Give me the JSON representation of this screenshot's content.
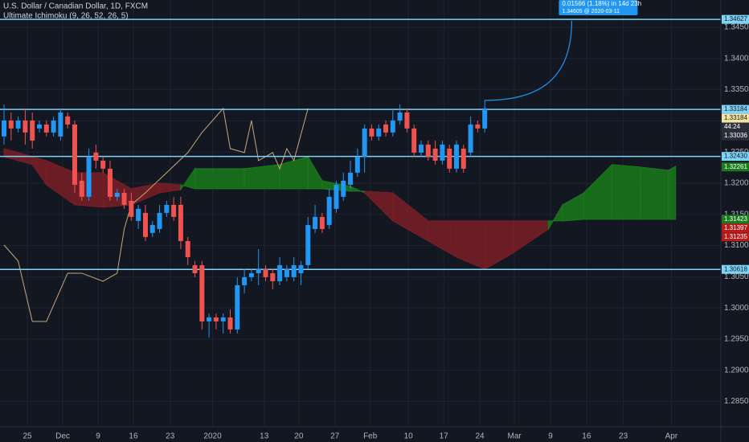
{
  "chart_data": {
    "type": "candlestick",
    "title": "U.S. Dollar / Canadian Dollar, 1D, FXCM",
    "indicator": "Ultimate Ichimoku (9, 26, 52, 26, 5)",
    "up_color": "#2196f3",
    "down_color": "#ef5350",
    "x": [
      0,
      1,
      2,
      3,
      4,
      5,
      6,
      7,
      8,
      9,
      10,
      11,
      12,
      13,
      14,
      15,
      16,
      17,
      18,
      19,
      20,
      21,
      22,
      23,
      24,
      25,
      26,
      27,
      28,
      29,
      30,
      31,
      32,
      33,
      34,
      35,
      36,
      37,
      38,
      39,
      40,
      41,
      42,
      43,
      44,
      45,
      46,
      47,
      48,
      49,
      50,
      51,
      52,
      53,
      54,
      55,
      56,
      57,
      58,
      59,
      60,
      61,
      62,
      63,
      64,
      65,
      66,
      67,
      68
    ],
    "open": [
      1.32749,
      1.33006,
      1.32878,
      1.33006,
      1.33006,
      1.32878,
      1.32942,
      1.32813,
      1.32749,
      1.33071,
      1.32942,
      1.3204,
      1.31782,
      1.32491,
      1.32362,
      1.32233,
      1.31782,
      1.31846,
      1.31718,
      1.31395,
      1.31524,
      1.31202,
      1.31266,
      1.31524,
      1.31653,
      1.31653,
      1.31073,
      1.30686,
      1.30686,
      1.29784,
      1.29848,
      1.29784,
      1.29848,
      1.29655,
      1.30364,
      1.30493,
      1.30557,
      1.30622,
      1.30557,
      1.30428,
      1.30493,
      1.30493,
      1.30557,
      1.30686,
      1.31266,
      1.3146,
      1.31331,
      1.31589,
      1.31782,
      1.31975,
      1.32169,
      1.32426,
      1.32878,
      1.32749,
      1.32942,
      1.32813,
      1.33006,
      1.33135,
      1.32878,
      1.32491,
      1.3262,
      1.32555,
      1.32362,
      1.32555,
      1.32233,
      1.32555,
      1.32491,
      1.32942,
      1.32878
    ],
    "high": [
      1.33264,
      1.33135,
      1.33071,
      1.332,
      1.33135,
      1.33006,
      1.33006,
      1.33071,
      1.332,
      1.33135,
      1.33006,
      1.32169,
      1.32555,
      1.3262,
      1.32426,
      1.32362,
      1.31911,
      1.31911,
      1.31846,
      1.31653,
      1.31653,
      1.31395,
      1.31653,
      1.31718,
      1.31782,
      1.31782,
      1.31138,
      1.30751,
      1.30751,
      1.29913,
      1.29913,
      1.29913,
      1.29977,
      1.30493,
      1.30622,
      1.30622,
      1.30944,
      1.30686,
      1.30622,
      1.30815,
      1.30686,
      1.30815,
      1.30751,
      1.3146,
      1.31653,
      1.31524,
      1.31911,
      1.3204,
      1.32169,
      1.32362,
      1.32555,
      1.32942,
      1.32942,
      1.32942,
      1.33006,
      1.332,
      1.33264,
      1.332,
      1.32942,
      1.32684,
      1.32684,
      1.32684,
      1.32684,
      1.3262,
      1.32684,
      1.3262,
      1.33071,
      1.33006,
      1.33329
    ],
    "low": [
      1.3262,
      1.32684,
      1.32813,
      1.3262,
      1.32555,
      1.32813,
      1.32749,
      1.32749,
      1.32684,
      1.32878,
      1.31846,
      1.31718,
      1.31718,
      1.32233,
      1.32169,
      1.31718,
      1.31718,
      1.31589,
      1.31395,
      1.31266,
      1.31073,
      1.31138,
      1.31202,
      1.3146,
      1.31395,
      1.30944,
      1.30686,
      1.30493,
      1.29655,
      1.29526,
      1.29655,
      1.2959,
      1.2959,
      1.2959,
      1.30234,
      1.30428,
      1.30364,
      1.30428,
      1.30298,
      1.30364,
      1.30428,
      1.30428,
      1.30364,
      1.30622,
      1.31202,
      1.31202,
      1.31266,
      1.31524,
      1.31718,
      1.31911,
      1.32104,
      1.32169,
      1.32684,
      1.32684,
      1.32749,
      1.32749,
      1.32942,
      1.32813,
      1.32426,
      1.32426,
      1.32362,
      1.32298,
      1.32298,
      1.32169,
      1.32169,
      1.32169,
      1.32426,
      1.32813,
      1.32813
    ],
    "close": [
      1.33006,
      1.32878,
      1.33006,
      1.32813,
      1.32684,
      1.32942,
      1.32813,
      1.33006,
      1.33135,
      1.32942,
      1.31975,
      1.31782,
      1.32426,
      1.32362,
      1.32233,
      1.31782,
      1.31846,
      1.31653,
      1.3146,
      1.31589,
      1.31138,
      1.31331,
      1.31524,
      1.31653,
      1.3146,
      1.31073,
      1.30815,
      1.30557,
      1.29784,
      1.29848,
      1.29784,
      1.29848,
      1.29655,
      1.30364,
      1.30493,
      1.30557,
      1.30622,
      1.30493,
      1.30428,
      1.30686,
      1.30622,
      1.30686,
      1.30686,
      1.31331,
      1.3146,
      1.31266,
      1.31782,
      1.31975,
      1.3204,
      1.32169,
      1.32426,
      1.32878,
      1.32749,
      1.32878,
      1.32813,
      1.33006,
      1.33135,
      1.32878,
      1.32491,
      1.3262,
      1.32426,
      1.32362,
      1.3262,
      1.32233,
      1.3262,
      1.32233,
      1.32942,
      1.32878,
      1.332
    ],
    "cloud": {
      "x": [
        0,
        4,
        6,
        10,
        14,
        18,
        22,
        25,
        27,
        34,
        39,
        43,
        45,
        49,
        51,
        55,
        60,
        64,
        68,
        72,
        77,
        79,
        82,
        86,
        90,
        94,
        95
      ],
      "span_a": [
        1.32426,
        1.32298,
        1.31975,
        1.31653,
        1.31614,
        1.31653,
        1.31846,
        1.31898,
        1.32233,
        1.32233,
        1.32298,
        1.32426,
        1.3204,
        1.3195,
        1.31846,
        1.31395,
        1.31073,
        1.30815,
        1.30622,
        1.3088,
        1.31266,
        1.31653,
        1.31846,
        1.32298,
        1.32259,
        1.32207,
        1.32272
      ],
      "span_b": [
        1.32555,
        1.32426,
        1.32362,
        1.32169,
        1.32169,
        1.31911,
        1.32001,
        1.31975,
        1.31911,
        1.31911,
        1.31911,
        1.31911,
        1.31911,
        1.31872,
        1.31872,
        1.31846,
        1.31395,
        1.31395,
        1.31395,
        1.31395,
        1.31395,
        1.31395,
        1.31421,
        1.31421,
        1.31421,
        1.31421,
        1.31421
      ],
      "up_color": "#1b7a1b",
      "down_color": "#7a1e24"
    },
    "lagging": {
      "color": "#c9a87a",
      "x": [
        0,
        2,
        4,
        6,
        9,
        11,
        14,
        16,
        17,
        18,
        20,
        23,
        26,
        28,
        31,
        32,
        34,
        35,
        36,
        38,
        39,
        40,
        41,
        43
      ],
      "values": [
        1.31009,
        1.30751,
        1.29784,
        1.29784,
        1.30557,
        1.30557,
        1.30428,
        1.30557,
        1.31266,
        1.31653,
        1.31846,
        1.32169,
        1.32491,
        1.32813,
        1.332,
        1.32555,
        1.32491,
        1.33006,
        1.32362,
        1.32491,
        1.32233,
        1.32555,
        1.32362,
        1.332
      ]
    },
    "hline_color": "#7fd3f5",
    "hlines": [
      {
        "value": 1.34627,
        "label": "1.34627"
      },
      {
        "value": 1.33184,
        "label": "1.33184"
      },
      {
        "value": 1.3243,
        "label": "1.32430"
      },
      {
        "value": 1.30618,
        "label": "1.30618"
      }
    ],
    "price_labels": [
      {
        "value": 1.33184,
        "label": "1.33184",
        "color": "#f5e3a3"
      },
      {
        "value": 1.33036,
        "label": "1.33036",
        "color": "#2a2e39"
      },
      {
        "value": 1.32261,
        "label": "1.32261",
        "color": "#1b7a1b"
      },
      {
        "value": 1.31423,
        "label": "1.31423",
        "color": "#1b7a1b"
      },
      {
        "value": 1.31397,
        "label": "1.31397",
        "color": "#b71c1c"
      },
      {
        "value": 1.31235,
        "label": "1.31235",
        "color": "#b71c1c"
      }
    ],
    "countdown": "44:24",
    "projection": {
      "text": "0.01566 (1.18%) in 14d 23h",
      "target_label": "1.34605 @ 2020-03-11",
      "target": 1.34605,
      "target_x": 80.3,
      "color": "#2196f3"
    },
    "xlim": [
      -0.57,
      101.4
    ],
    "ylim": [
      1.28108,
      1.34938
    ],
    "xticks": [
      {
        "value": 3.3,
        "label": "25"
      },
      {
        "value": 8.3,
        "label": "Dec"
      },
      {
        "value": 13.3,
        "label": "9"
      },
      {
        "value": 18.3,
        "label": "16"
      },
      {
        "value": 23.5,
        "label": "23"
      },
      {
        "value": 29.5,
        "label": "2020"
      },
      {
        "value": 36.8,
        "label": "13"
      },
      {
        "value": 41.7,
        "label": "20"
      },
      {
        "value": 46.8,
        "label": "27"
      },
      {
        "value": 51.8,
        "label": "Feb"
      },
      {
        "value": 57.2,
        "label": "10"
      },
      {
        "value": 62.2,
        "label": "17"
      },
      {
        "value": 67.3,
        "label": "24"
      },
      {
        "value": 72.2,
        "label": "Mar"
      },
      {
        "value": 77.3,
        "label": "9"
      },
      {
        "value": 82.4,
        "label": "16"
      },
      {
        "value": 87.6,
        "label": "23"
      },
      {
        "value": 94.4,
        "label": "Apr"
      }
    ],
    "yticks": [
      {
        "value": 1.285,
        "label": "1.28500"
      },
      {
        "value": 1.29,
        "label": "1.29000"
      },
      {
        "value": 1.295,
        "label": "1.29500"
      },
      {
        "value": 1.3,
        "label": "1.30000"
      },
      {
        "value": 1.305,
        "label": "1.30500"
      },
      {
        "value": 1.31,
        "label": "1.31000"
      },
      {
        "value": 1.315,
        "label": "1.31500"
      },
      {
        "value": 1.32,
        "label": "1.32000"
      },
      {
        "value": 1.325,
        "label": "1.32500"
      },
      {
        "value": 1.33,
        "label": "1.33000"
      },
      {
        "value": 1.335,
        "label": "1.33500"
      },
      {
        "value": 1.34,
        "label": "1.34000"
      },
      {
        "value": 1.345,
        "label": "1.34500"
      }
    ],
    "grid": true
  }
}
